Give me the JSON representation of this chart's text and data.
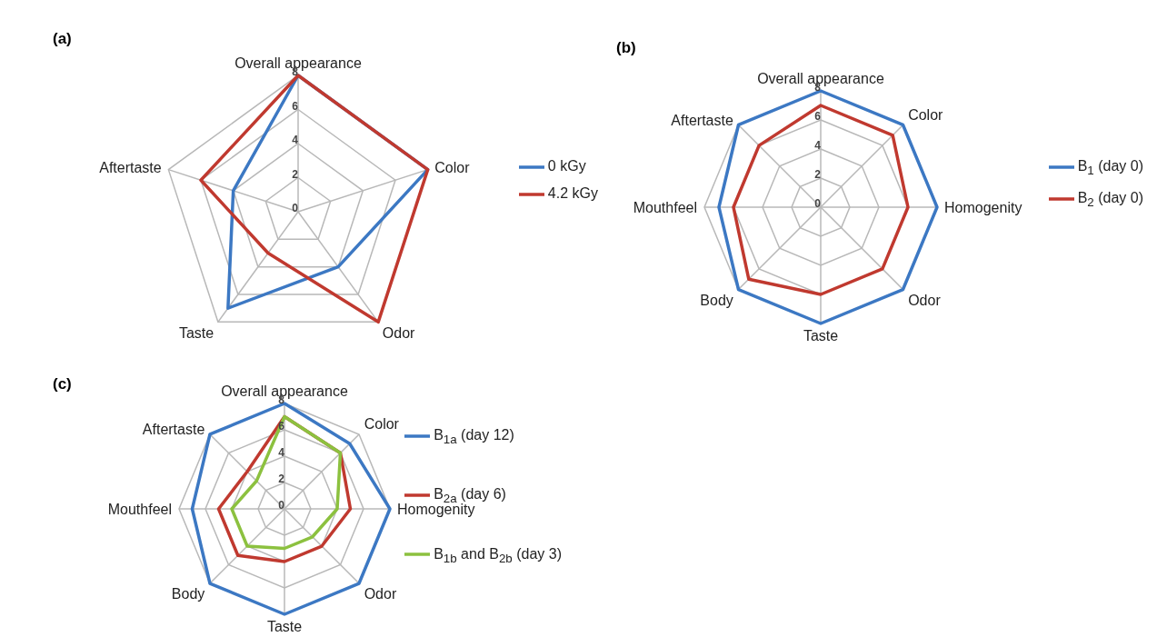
{
  "chart_data": [
    {
      "type": "radar",
      "title": "(a)",
      "categories": [
        "Overall appearance",
        "Color",
        "Odor",
        "Taste",
        "Aftertaste"
      ],
      "ylim": [
        0,
        8
      ],
      "yticks": [
        0,
        2,
        4,
        6,
        8
      ],
      "grid": true,
      "legend": "right",
      "series": [
        {
          "name": "0 kGy",
          "color": "#3c78c3",
          "values": [
            8,
            8,
            4,
            7,
            4
          ]
        },
        {
          "name": "4.2 kGy",
          "color": "#c0392f",
          "values": [
            8,
            8,
            8,
            3,
            6
          ]
        }
      ]
    },
    {
      "type": "radar",
      "title": "(b)",
      "categories": [
        "Overall appearance",
        "Color",
        "Homogenity",
        "Odor",
        "Taste",
        "Body",
        "Mouthfeel",
        "Aftertaste"
      ],
      "ylim": [
        0,
        8
      ],
      "yticks": [
        0,
        2,
        4,
        6,
        8
      ],
      "grid": true,
      "legend": "right",
      "series": [
        {
          "name": "B$_{1}$ (day 0)",
          "color": "#3c78c3",
          "values": [
            8,
            8,
            8,
            8,
            8,
            8,
            7,
            8
          ]
        },
        {
          "name": "B$_{2}$ (day 0)",
          "color": "#c0392f",
          "values": [
            7,
            7,
            6,
            6,
            6,
            7,
            6,
            6
          ]
        }
      ]
    },
    {
      "type": "radar",
      "title": "(c)",
      "categories": [
        "Overall appearance",
        "Color",
        "Homogenity",
        "Odor",
        "Taste",
        "Body",
        "Mouthfeel",
        "Aftertaste"
      ],
      "ylim": [
        0,
        8
      ],
      "yticks": [
        0,
        2,
        4,
        6,
        8
      ],
      "grid": true,
      "legend": "right",
      "series": [
        {
          "name": "B$_{1a}$ (day 12)",
          "color": "#3c78c3",
          "values": [
            8,
            7,
            8,
            8,
            8,
            8,
            7,
            8
          ]
        },
        {
          "name": "B$_{2a}$ (day 6)",
          "color": "#c0392f",
          "values": [
            7,
            6,
            5,
            4,
            4,
            5,
            5,
            4
          ]
        },
        {
          "name": "B$_{1b}$ and B$_{2b}$ (day 3)",
          "color": "#8cc13f",
          "values": [
            7,
            6,
            4,
            3,
            3,
            4,
            4,
            3
          ]
        }
      ]
    }
  ]
}
